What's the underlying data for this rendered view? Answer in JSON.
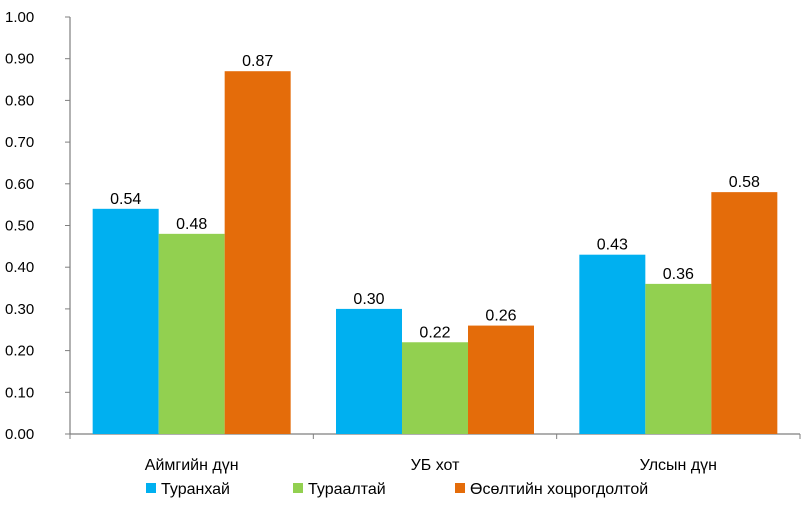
{
  "chart_data": {
    "type": "bar",
    "categories": [
      "Аймгийн дүн",
      "УБ хот",
      "Улсын дүн"
    ],
    "series": [
      {
        "name": "Туранхай",
        "values": [
          0.54,
          0.3,
          0.43
        ],
        "color": "#00b0f0"
      },
      {
        "name": "Тураалтай",
        "values": [
          0.48,
          0.22,
          0.36
        ],
        "color": "#92d050"
      },
      {
        "name": "Өсөлтийн хоцрогдолтой",
        "values": [
          0.87,
          0.26,
          0.58
        ],
        "color": "#e46c0a"
      }
    ],
    "yticks": [
      "0.00",
      "0.10",
      "0.20",
      "0.30",
      "0.40",
      "0.50",
      "0.60",
      "0.70",
      "0.80",
      "0.90",
      "1.00"
    ],
    "data_labels": [
      [
        "0.54",
        "0.30",
        "0.43"
      ],
      [
        "0.48",
        "0.22",
        "0.36"
      ],
      [
        "0.87",
        "0.26",
        "0.58"
      ]
    ],
    "ylim": [
      0,
      1
    ],
    "grid": false,
    "legend_position": "bottom"
  }
}
